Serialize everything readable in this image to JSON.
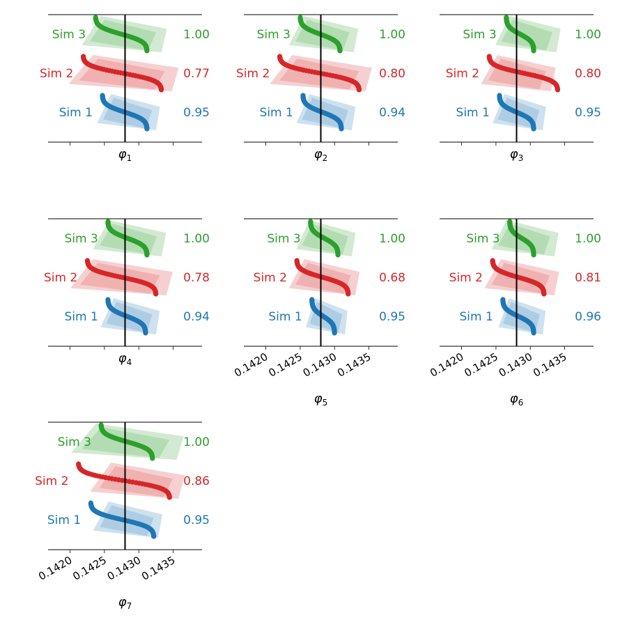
{
  "chart_data": {
    "type": "scatter",
    "description_ok": false,
    "reference_value": 0.1428,
    "x_ticks": [
      0.142,
      0.1425,
      0.143,
      0.1435
    ],
    "x_tick_labels": [
      "0.1420",
      "0.1425",
      "0.1430",
      "0.1435"
    ],
    "xlim": [
      0.14168,
      0.14392
    ],
    "series_names": [
      "Sim 3",
      "Sim 2",
      "Sim 1"
    ],
    "series_colors": {
      "Sim 3": "#2ca02c",
      "Sim 2": "#d62728",
      "Sim 1": "#1f77b4"
    },
    "panels": [
      {
        "label": "φ1",
        "sub": "1",
        "show_tick_labels": false,
        "sims": [
          {
            "name": "Sim 3",
            "coverage": "1.00",
            "min": 0.14237,
            "max": 0.14312,
            "ci_min": 0.14225,
            "ci_max": 0.14333
          },
          {
            "name": "Sim 2",
            "coverage": "0.77",
            "min": 0.14219,
            "max": 0.14333,
            "ci_min": 0.14208,
            "ci_max": 0.14348
          },
          {
            "name": "Sim 1",
            "coverage": "0.95",
            "min": 0.14247,
            "max": 0.14312,
            "ci_min": 0.14245,
            "ci_max": 0.14325
          }
        ]
      },
      {
        "label": "φ2",
        "sub": "2",
        "show_tick_labels": false,
        "sims": [
          {
            "name": "Sim 3",
            "coverage": "1.00",
            "min": 0.1425,
            "max": 0.14308,
            "ci_min": 0.1424,
            "ci_max": 0.14328
          },
          {
            "name": "Sim 2",
            "coverage": "0.80",
            "min": 0.1422,
            "max": 0.14336,
            "ci_min": 0.14215,
            "ci_max": 0.14345
          },
          {
            "name": "Sim 1",
            "coverage": "0.94",
            "min": 0.14254,
            "max": 0.1431,
            "ci_min": 0.1425,
            "ci_max": 0.14325
          }
        ]
      },
      {
        "label": "φ3",
        "sub": "3",
        "show_tick_labels": false,
        "sims": [
          {
            "name": "Sim 3",
            "coverage": "1.00",
            "min": 0.14265,
            "max": 0.14305,
            "ci_min": 0.14255,
            "ci_max": 0.14338
          },
          {
            "name": "Sim 2",
            "coverage": "0.80",
            "min": 0.1424,
            "max": 0.1434,
            "ci_min": 0.14235,
            "ci_max": 0.1433
          },
          {
            "name": "Sim 1",
            "coverage": "0.95",
            "min": 0.14255,
            "max": 0.14305,
            "ci_min": 0.1425,
            "ci_max": 0.14318
          }
        ]
      },
      {
        "label": "φ4",
        "sub": "4",
        "show_tick_labels": false,
        "sims": [
          {
            "name": "Sim 3",
            "coverage": "1.00",
            "min": 0.14255,
            "max": 0.14312,
            "ci_min": 0.1424,
            "ci_max": 0.14333
          },
          {
            "name": "Sim 2",
            "coverage": "0.78",
            "min": 0.14225,
            "max": 0.14325,
            "ci_min": 0.1421,
            "ci_max": 0.1434
          },
          {
            "name": "Sim 1",
            "coverage": "0.94",
            "min": 0.14255,
            "max": 0.1431,
            "ci_min": 0.1425,
            "ci_max": 0.14325
          }
        ]
      },
      {
        "label": "φ5",
        "sub": "5",
        "show_tick_labels": true,
        "sims": [
          {
            "name": "Sim 3",
            "coverage": "1.00",
            "min": 0.14265,
            "max": 0.14305,
            "ci_min": 0.1425,
            "ci_max": 0.14325
          },
          {
            "name": "Sim 2",
            "coverage": "0.68",
            "min": 0.14245,
            "max": 0.1432,
            "ci_min": 0.1424,
            "ci_max": 0.1433
          },
          {
            "name": "Sim 1",
            "coverage": "0.95",
            "min": 0.14267,
            "max": 0.143,
            "ci_min": 0.14262,
            "ci_max": 0.14315
          }
        ]
      },
      {
        "label": "φ6",
        "sub": "6",
        "show_tick_labels": true,
        "sims": [
          {
            "name": "Sim 3",
            "coverage": "1.00",
            "min": 0.1427,
            "max": 0.14305,
            "ci_min": 0.1425,
            "ci_max": 0.14335
          },
          {
            "name": "Sim 2",
            "coverage": "0.81",
            "min": 0.14245,
            "max": 0.1432,
            "ci_min": 0.1424,
            "ci_max": 0.14335
          },
          {
            "name": "Sim 1",
            "coverage": "0.96",
            "min": 0.1426,
            "max": 0.14305,
            "ci_min": 0.14258,
            "ci_max": 0.14318
          }
        ]
      },
      {
        "label": "φ7",
        "sub": "7",
        "show_tick_labels": true,
        "sims": [
          {
            "name": "Sim 3",
            "coverage": "1.00",
            "min": 0.14245,
            "max": 0.1432,
            "ci_min": 0.14212,
            "ci_max": 0.14355
          },
          {
            "name": "Sim 2",
            "coverage": "0.86",
            "min": 0.14212,
            "max": 0.14345,
            "ci_min": 0.14238,
            "ci_max": 0.14358
          },
          {
            "name": "Sim 1",
            "coverage": "0.95",
            "min": 0.1423,
            "max": 0.14322,
            "ci_min": 0.1424,
            "ci_max": 0.14328
          }
        ]
      }
    ]
  }
}
